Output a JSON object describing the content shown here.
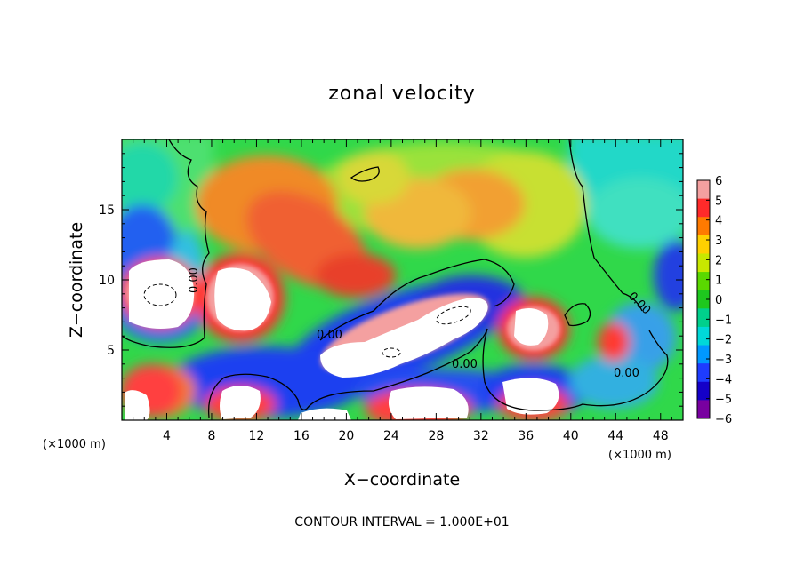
{
  "chart_data": {
    "type": "heatmap",
    "title": "zonal velocity",
    "xlabel": "X−coordinate",
    "ylabel": "Z−coordinate",
    "x_unit": "(×1000 m)",
    "y_unit": "(×1000 m)",
    "xlim": [
      0,
      50
    ],
    "ylim": [
      0,
      20
    ],
    "x_ticks": [
      "4",
      "8",
      "12",
      "16",
      "20",
      "24",
      "28",
      "32",
      "36",
      "40",
      "44",
      "48"
    ],
    "y_ticks": [
      "5",
      "10",
      "15"
    ],
    "colorbar": {
      "labels": [
        "6",
        "5",
        "4",
        "3",
        "2",
        "1",
        "0",
        "−1",
        "−2",
        "−3",
        "−4",
        "−5",
        "−6"
      ],
      "colors": [
        "#f4a0a0",
        "#ff2a2a",
        "#ff7a00",
        "#ffd000",
        "#c8e800",
        "#5ad800",
        "#1ec81e",
        "#00d08c",
        "#00d8d8",
        "#0098ff",
        "#1e3cff",
        "#1400c8",
        "#7800a0"
      ]
    },
    "contour_label": "0.00",
    "footnote": "CONTOUR INTERVAL = 1.000E+01",
    "grid": false,
    "legend": "colorbar at right"
  }
}
